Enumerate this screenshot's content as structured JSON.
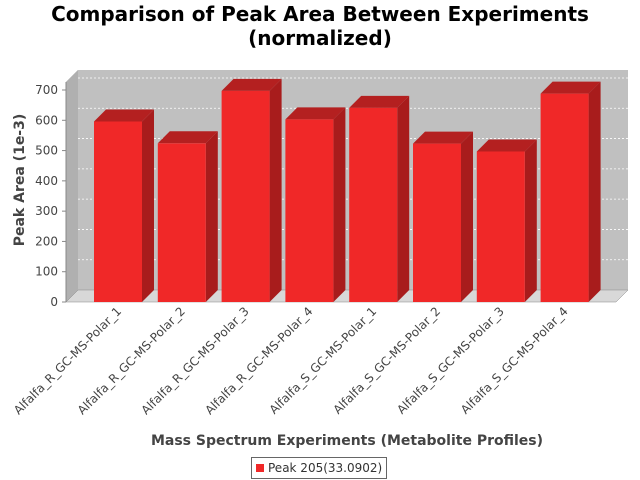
{
  "chart_data": {
    "type": "bar",
    "title_line1": "Comparison of Peak Area Between Experiments",
    "title_line2": "(normalized)",
    "xlabel": "Mass Spectrum Experiments (Metabolite Profiles)",
    "ylabel": "Peak Area (1e-3)",
    "ylim": [
      0,
      700
    ],
    "yticks": [
      "0",
      "100",
      "200",
      "300",
      "400",
      "500",
      "600",
      "700"
    ],
    "categories": [
      "Alfalfa_R_GC-MS-Polar_1",
      "Alfalfa_R_GC-MS-Polar_2",
      "Alfalfa_R_GC-MS-Polar_3",
      "Alfalfa_R_GC-MS-Polar_4",
      "Alfalfa_S_GC-MS-Polar_1",
      "Alfalfa_S_GC-MS-Polar_2",
      "Alfalfa_S_GC-MS-Polar_3",
      "Alfalfa_S_GC-MS-Polar_4"
    ],
    "series": [
      {
        "name": "Peak 205(33.0902)",
        "color": "#f02828",
        "values": [
          596,
          524,
          697,
          603,
          641,
          523,
          497,
          688
        ]
      }
    ],
    "grid": true,
    "legend_position": "bottom-center",
    "plot_background": "#c0c0c0"
  }
}
